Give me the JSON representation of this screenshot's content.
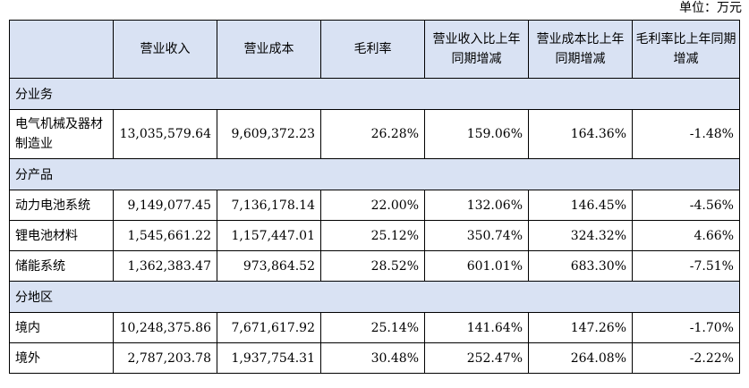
{
  "unit": "单位：万元",
  "headers": [
    "",
    "营业收入",
    "营业成本",
    "毛利率",
    "营业收入比上年同期增减",
    "营业成本比上年同期增减",
    "毛利率比上年同期增减"
  ],
  "sections": [
    {
      "title": "分业务",
      "rows": [
        {
          "label": "电气机械及器材制造业",
          "revenue": "13,035,579.64",
          "cost": "9,609,372.23",
          "margin": "26.28%",
          "revenue_change": "159.06%",
          "cost_change": "164.36%",
          "margin_change": "-1.48%"
        }
      ]
    },
    {
      "title": "分产品",
      "rows": [
        {
          "label": "动力电池系统",
          "revenue": "9,149,077.45",
          "cost": "7,136,178.14",
          "margin": "22.00%",
          "revenue_change": "132.06%",
          "cost_change": "146.45%",
          "margin_change": "-4.56%"
        },
        {
          "label": "锂电池材料",
          "revenue": "1,545,661.22",
          "cost": "1,157,447.01",
          "margin": "25.12%",
          "revenue_change": "350.74%",
          "cost_change": "324.32%",
          "margin_change": "4.66%"
        },
        {
          "label": "储能系统",
          "revenue": "1,362,383.47",
          "cost": "973,864.52",
          "margin": "28.52%",
          "revenue_change": "601.01%",
          "cost_change": "683.30%",
          "margin_change": "-7.51%"
        }
      ]
    },
    {
      "title": "分地区",
      "rows": [
        {
          "label": "境内",
          "revenue": "10,248,375.86",
          "cost": "7,671,617.92",
          "margin": "25.14%",
          "revenue_change": "141.64%",
          "cost_change": "147.26%",
          "margin_change": "-1.70%"
        },
        {
          "label": "境外",
          "revenue": "2,787,203.78",
          "cost": "1,937,754.31",
          "margin": "30.48%",
          "revenue_change": "252.47%",
          "cost_change": "264.08%",
          "margin_change": "-2.22%"
        }
      ]
    }
  ],
  "colors": {
    "header_bg": "#d9e2f3",
    "border": "#000000"
  }
}
